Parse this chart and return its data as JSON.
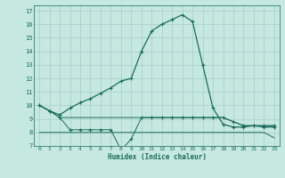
{
  "xlabel": "Humidex (Indice chaleur)",
  "background_color": "#c5e8e0",
  "line_color": "#1a6b5a",
  "grid_color": "#a8cec8",
  "xlim": [
    -0.5,
    23.5
  ],
  "ylim": [
    7,
    17.4
  ],
  "yticks": [
    7,
    8,
    9,
    10,
    11,
    12,
    13,
    14,
    15,
    16,
    17
  ],
  "xticks": [
    0,
    1,
    2,
    3,
    4,
    5,
    6,
    7,
    8,
    9,
    10,
    11,
    12,
    13,
    14,
    15,
    16,
    17,
    18,
    19,
    20,
    21,
    22,
    23
  ],
  "line_main_x": [
    0,
    1,
    2,
    3,
    4,
    5,
    6,
    7,
    8,
    9,
    10,
    11,
    12,
    13,
    14,
    15,
    16,
    17,
    18,
    19,
    20,
    21,
    22,
    23
  ],
  "line_main_y": [
    10.0,
    9.6,
    9.3,
    9.8,
    10.2,
    10.5,
    10.9,
    11.3,
    11.8,
    12.0,
    14.0,
    15.5,
    16.0,
    16.35,
    16.7,
    16.2,
    13.0,
    9.8,
    8.6,
    8.4,
    8.4,
    8.5,
    8.4,
    8.4
  ],
  "line_flat9_x": [
    0,
    1,
    2,
    3,
    4,
    5,
    6,
    7,
    8,
    9,
    10,
    11,
    12,
    13,
    14,
    15,
    16,
    17,
    18,
    19,
    20,
    21,
    22,
    23
  ],
  "line_flat9_y": [
    10.0,
    9.6,
    9.1,
    9.1,
    9.1,
    9.1,
    9.1,
    9.1,
    9.1,
    9.1,
    9.1,
    9.1,
    9.1,
    9.1,
    9.1,
    9.1,
    9.1,
    9.1,
    9.1,
    8.8,
    8.5,
    8.5,
    8.5,
    8.5
  ],
  "line_flat8_x": [
    0,
    1,
    2,
    3,
    4,
    5,
    6,
    7,
    8,
    9,
    10,
    11,
    12,
    13,
    14,
    15,
    16,
    17,
    18,
    19,
    20,
    21,
    22,
    23
  ],
  "line_flat8_y": [
    8.0,
    8.0,
    8.0,
    8.0,
    8.0,
    8.0,
    8.0,
    8.0,
    8.0,
    8.0,
    8.0,
    8.0,
    8.0,
    8.0,
    8.0,
    8.0,
    8.0,
    8.0,
    8.0,
    8.0,
    8.0,
    8.0,
    8.0,
    7.6
  ],
  "line_dip_x": [
    0,
    1,
    2,
    3,
    4,
    5,
    6,
    7,
    8,
    9,
    10,
    11,
    12,
    13,
    14,
    15,
    16,
    17,
    18,
    19,
    20,
    21,
    22,
    23
  ],
  "line_dip_y": [
    10.0,
    9.6,
    9.1,
    8.2,
    8.2,
    8.2,
    8.2,
    8.2,
    6.7,
    7.5,
    9.1,
    9.1,
    9.1,
    9.1,
    9.1,
    9.1,
    9.1,
    9.1,
    9.1,
    8.8,
    8.5,
    8.5,
    8.5,
    8.5
  ]
}
